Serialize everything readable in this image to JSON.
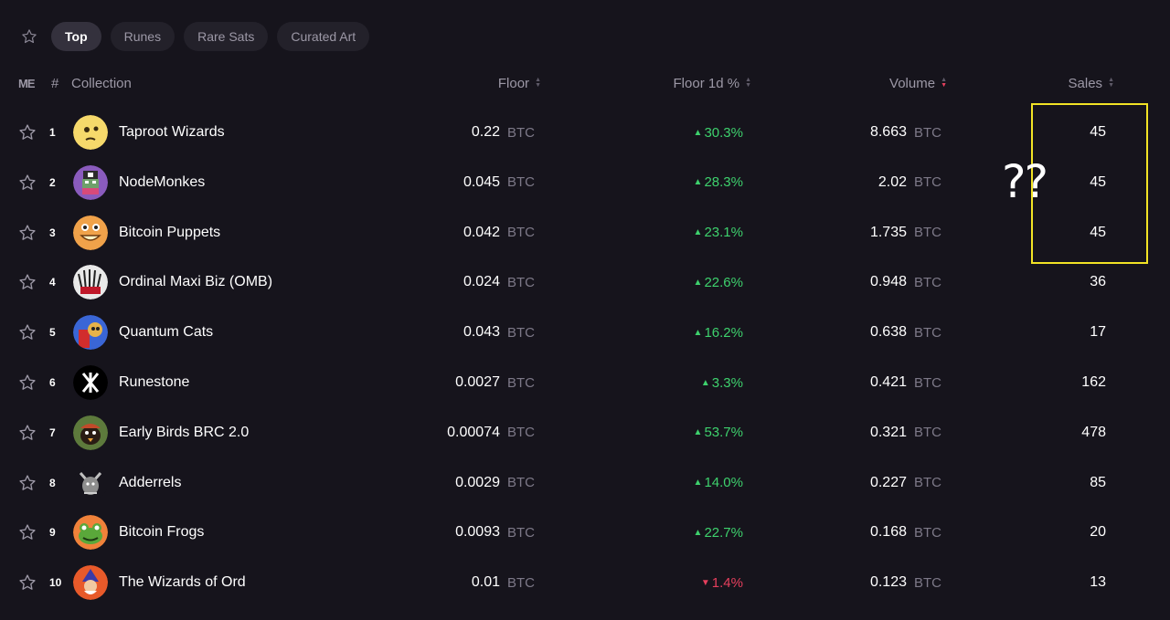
{
  "tabs": [
    {
      "label": "Top",
      "active": true
    },
    {
      "label": "Runes",
      "active": false
    },
    {
      "label": "Rare Sats",
      "active": false
    },
    {
      "label": "Curated Art",
      "active": false
    }
  ],
  "header": {
    "logo": "ME",
    "hash": "#",
    "collection": "Collection",
    "floor": "Floor",
    "floor_1d": "Floor 1d %",
    "volume": "Volume",
    "sales": "Sales"
  },
  "rows": [
    {
      "rank": "1",
      "name": "Taproot Wizards",
      "floor": "0.22",
      "floor_unit": "BTC",
      "change": "30.3%",
      "direction": "up",
      "volume": "8.663",
      "volume_unit": "BTC",
      "sales": "45"
    },
    {
      "rank": "2",
      "name": "NodeMonkes",
      "floor": "0.045",
      "floor_unit": "BTC",
      "change": "28.3%",
      "direction": "up",
      "volume": "2.02",
      "volume_unit": "BTC",
      "sales": "45"
    },
    {
      "rank": "3",
      "name": "Bitcoin Puppets",
      "floor": "0.042",
      "floor_unit": "BTC",
      "change": "23.1%",
      "direction": "up",
      "volume": "1.735",
      "volume_unit": "BTC",
      "sales": "45"
    },
    {
      "rank": "4",
      "name": "Ordinal Maxi Biz (OMB)",
      "floor": "0.024",
      "floor_unit": "BTC",
      "change": "22.6%",
      "direction": "up",
      "volume": "0.948",
      "volume_unit": "BTC",
      "sales": "36"
    },
    {
      "rank": "5",
      "name": "Quantum Cats",
      "floor": "0.043",
      "floor_unit": "BTC",
      "change": "16.2%",
      "direction": "up",
      "volume": "0.638",
      "volume_unit": "BTC",
      "sales": "17"
    },
    {
      "rank": "6",
      "name": "Runestone",
      "floor": "0.0027",
      "floor_unit": "BTC",
      "change": "3.3%",
      "direction": "up",
      "volume": "0.421",
      "volume_unit": "BTC",
      "sales": "162"
    },
    {
      "rank": "7",
      "name": "Early Birds BRC 2.0",
      "floor": "0.00074",
      "floor_unit": "BTC",
      "change": "53.7%",
      "direction": "up",
      "volume": "0.321",
      "volume_unit": "BTC",
      "sales": "478"
    },
    {
      "rank": "8",
      "name": "Adderrels",
      "floor": "0.0029",
      "floor_unit": "BTC",
      "change": "14.0%",
      "direction": "up",
      "volume": "0.227",
      "volume_unit": "BTC",
      "sales": "85"
    },
    {
      "rank": "9",
      "name": "Bitcoin Frogs",
      "floor": "0.0093",
      "floor_unit": "BTC",
      "change": "22.7%",
      "direction": "up",
      "volume": "0.168",
      "volume_unit": "BTC",
      "sales": "20"
    },
    {
      "rank": "10",
      "name": "The Wizards of Ord",
      "floor": "0.01",
      "floor_unit": "BTC",
      "change": "1.4%",
      "direction": "down",
      "volume": "0.123",
      "volume_unit": "BTC",
      "sales": "13"
    }
  ],
  "annotation": {
    "mark": "??"
  },
  "colors": {
    "background": "#16141c",
    "positive": "#3ed16d",
    "negative": "#e63f5d",
    "highlight": "#f2e325"
  }
}
